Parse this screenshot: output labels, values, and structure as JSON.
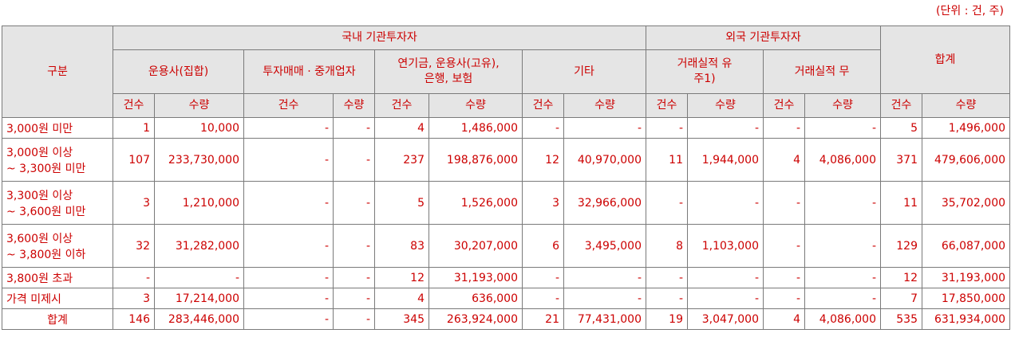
{
  "unit_note": "(단위 : 건, 주)",
  "header": {
    "category": "구분",
    "domestic": "국내 기관투자자",
    "foreign": "외국 기관투자자",
    "total": "합계",
    "domestic_groups": [
      "운용사(집합)",
      "투자매매 · 중개업자",
      "연기금, 운용사(고유),\n은행, 보험",
      "기타"
    ],
    "foreign_groups": [
      "거래실적 유\n주1)",
      "거래실적 무"
    ],
    "count": "건수",
    "qty": "수량"
  },
  "rows": [
    {
      "label": "3,000원 미만",
      "v": [
        "1",
        "10,000",
        "-",
        "-",
        "4",
        "1,486,000",
        "-",
        "-",
        "-",
        "-",
        "-",
        "-",
        "5",
        "1,496,000"
      ]
    },
    {
      "label": "3,000원 이상\n~ 3,300원 미만",
      "v": [
        "107",
        "233,730,000",
        "-",
        "-",
        "237",
        "198,876,000",
        "12",
        "40,970,000",
        "11",
        "1,944,000",
        "4",
        "4,086,000",
        "371",
        "479,606,000"
      ]
    },
    {
      "label": "3,300원 이상\n~ 3,600원 미만",
      "v": [
        "3",
        "1,210,000",
        "-",
        "-",
        "5",
        "1,526,000",
        "3",
        "32,966,000",
        "-",
        "-",
        "-",
        "-",
        "11",
        "35,702,000"
      ]
    },
    {
      "label": "3,600원 이상\n~ 3,800원 이하",
      "v": [
        "32",
        "31,282,000",
        "-",
        "-",
        "83",
        "30,207,000",
        "6",
        "3,495,000",
        "8",
        "1,103,000",
        "-",
        "-",
        "129",
        "66,087,000"
      ]
    },
    {
      "label": "3,800원 초과",
      "v": [
        "-",
        "-",
        "-",
        "-",
        "12",
        "31,193,000",
        "-",
        "-",
        "-",
        "-",
        "-",
        "-",
        "12",
        "31,193,000"
      ]
    },
    {
      "label": "가격 미제시",
      "v": [
        "3",
        "17,214,000",
        "-",
        "-",
        "4",
        "636,000",
        "-",
        "-",
        "-",
        "-",
        "-",
        "-",
        "7",
        "17,850,000"
      ]
    },
    {
      "label": "합계",
      "v": [
        "146",
        "283,446,000",
        "-",
        "-",
        "345",
        "263,924,000",
        "21",
        "77,431,000",
        "19",
        "3,047,000",
        "4",
        "4,086,000",
        "535",
        "631,934,000"
      ]
    }
  ]
}
